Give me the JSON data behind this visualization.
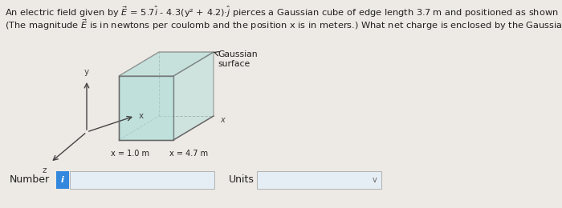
{
  "bg_color": "#ede9e4",
  "title_line1": "An electric field given by $\\vec{E}$ = 5.7$\\hat{i}$ - 4.3(y² + 4.2)·$\\hat{j}$ pierces a Gaussian cube of edge length 3.7 m and positioned as shown in the figure.",
  "title_line2": "(The magnitude $\\vec{E}$ is in newtons per coulomb and the position x is in meters.) What net charge is enclosed by the Gaussian cube?",
  "cube_face_color": "#b0ddd8",
  "cube_edge_color": "#666666",
  "cube_face_alpha": 0.75,
  "label_gaussian": "Gaussian\nsurface",
  "label_x_axis": "x",
  "label_x1": "x = 1.0 m",
  "label_x2": "x = 4.7 m",
  "number_label": "Number",
  "units_label": "Units",
  "info_button_color": "#3388dd",
  "input_box_color": "#e4eef4",
  "units_box_color": "#e4eef4",
  "axis_color": "#444444",
  "text_color": "#222222",
  "font_size_title": 8.2,
  "font_size_label": 7.8,
  "font_size_bottom": 9.0,
  "font_size_axis": 7.5
}
